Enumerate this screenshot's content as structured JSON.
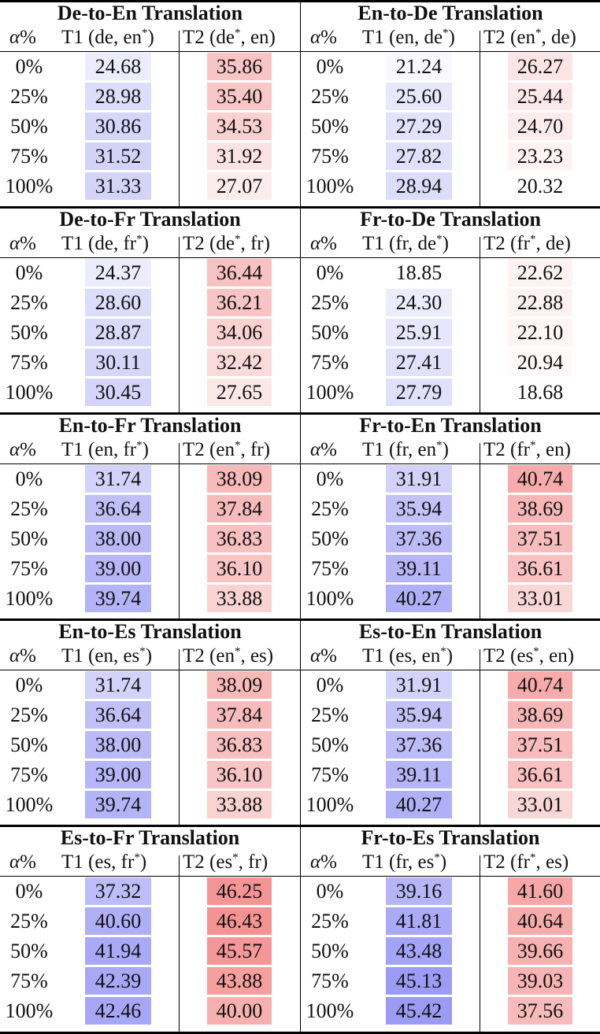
{
  "alpha_header": "α%",
  "alpha_values": [
    "0%",
    "25%",
    "50%",
    "75%",
    "100%"
  ],
  "blocks": [
    {
      "left": {
        "title": "De-to-En Translation",
        "t1_label": "T1 (de, en",
        "t1_star": "*",
        "t1_close": ")",
        "t2_label": "T2 (de",
        "t2_star": "*",
        "t2_close": ", en)",
        "t1": [
          "24.68",
          "28.98",
          "30.86",
          "31.52",
          "31.33"
        ],
        "t2": [
          "35.86",
          "35.40",
          "34.53",
          "31.92",
          "27.07"
        ],
        "t1_colors": [
          "#ececfc",
          "#dcdcfb",
          "#d6d6fb",
          "#d3d3fa",
          "#d4d4fa"
        ],
        "t2_colors": [
          "#f9c4c4",
          "#f9c7c7",
          "#fad0d0",
          "#fce3e3",
          "#fdecec"
        ]
      },
      "right": {
        "title": "En-to-De Translation",
        "t1_label": "T1 (en, de",
        "t1_star": "*",
        "t1_close": ")",
        "t2_label": "T2 (en",
        "t2_star": "*",
        "t2_close": ", de)",
        "t1": [
          "21.24",
          "25.60",
          "27.29",
          "27.82",
          "28.94"
        ],
        "t2": [
          "26.27",
          "25.44",
          "24.70",
          "23.23",
          "20.32"
        ],
        "t1_colors": [
          "#f8f8fe",
          "#e8e8fc",
          "#e2e2fc",
          "#e0e0fc",
          "#dcdcfb"
        ],
        "t2_colors": [
          "#fde5e5",
          "#fde9e9",
          "#fdecec",
          "#fef2f2",
          "#ffffff"
        ]
      }
    },
    {
      "left": {
        "title": "De-to-Fr Translation",
        "t1_label": "T1 (de, fr",
        "t1_star": "*",
        "t1_close": ")",
        "t2_label": "T2 (de",
        "t2_star": "*",
        "t2_close": ", fr)",
        "t1": [
          "24.37",
          "28.60",
          "28.87",
          "30.11",
          "30.45"
        ],
        "t2": [
          "36.44",
          "36.21",
          "34.06",
          "32.42",
          "27.65"
        ],
        "t1_colors": [
          "#ececfc",
          "#dcdcfb",
          "#dadafb",
          "#d6d6fb",
          "#d5d5fb"
        ],
        "t2_colors": [
          "#f9c2c2",
          "#f9c4c4",
          "#fad2d2",
          "#fbdada",
          "#fde8e8"
        ]
      },
      "right": {
        "title": "Fr-to-De Translation",
        "t1_label": "T1 (fr, de",
        "t1_star": "*",
        "t1_close": ")",
        "t2_label": "T2 (fr",
        "t2_star": "*",
        "t2_close": ", de)",
        "t1": [
          "18.85",
          "24.30",
          "25.91",
          "27.41",
          "27.79"
        ],
        "t2": [
          "22.62",
          "22.88",
          "22.10",
          "20.94",
          "18.68"
        ],
        "t1_colors": [
          "#ffffff",
          "#ececfc",
          "#e6e6fc",
          "#e1e1fc",
          "#e0e0fc"
        ],
        "t2_colors": [
          "#fef3f3",
          "#fef2f2",
          "#fef5f5",
          "#fffafa",
          "#ffffff"
        ]
      }
    },
    {
      "left": {
        "title": "En-to-Fr Translation",
        "t1_label": "T1 (en, fr",
        "t1_star": "*",
        "t1_close": ")",
        "t2_label": "T2 (en",
        "t2_star": "*",
        "t2_close": ", fr)",
        "t1": [
          "31.74",
          "36.64",
          "38.00",
          "39.00",
          "39.74"
        ],
        "t2": [
          "38.09",
          "37.84",
          "36.83",
          "36.10",
          "33.88"
        ],
        "t1_colors": [
          "#d2d2fa",
          "#c0c0f9",
          "#babaf9",
          "#b6b6f8",
          "#b3b3f8"
        ],
        "t2_colors": [
          "#f8b9b9",
          "#f8bbbb",
          "#f9c0c0",
          "#f9c4c4",
          "#fad2d2"
        ]
      },
      "right": {
        "title": "Fr-to-En Translation",
        "t1_label": "T1 (fr, en",
        "t1_star": "*",
        "t1_close": ")",
        "t2_label": "T2 (fr",
        "t2_star": "*",
        "t2_close": ", en)",
        "t1": [
          "31.91",
          "35.94",
          "37.36",
          "39.11",
          "40.27"
        ],
        "t2": [
          "40.74",
          "38.69",
          "37.51",
          "36.61",
          "33.01"
        ],
        "t1_colors": [
          "#d2d2fa",
          "#c2c2f9",
          "#bcbcf9",
          "#b5b5f8",
          "#b0b0f8"
        ],
        "t2_colors": [
          "#f7abab",
          "#f8b6b6",
          "#f8bcbc",
          "#f9c1c1",
          "#fad7d7"
        ]
      }
    },
    {
      "left": {
        "title": "En-to-Es Translation",
        "t1_label": "T1 (en, es",
        "t1_star": "*",
        "t1_close": ")",
        "t2_label": "T2 (en",
        "t2_star": "*",
        "t2_close": ", es)",
        "t1": [
          "31.74",
          "36.64",
          "38.00",
          "39.00",
          "39.74"
        ],
        "t2": [
          "38.09",
          "37.84",
          "36.83",
          "36.10",
          "33.88"
        ],
        "t1_colors": [
          "#d2d2fa",
          "#c0c0f9",
          "#babaf9",
          "#b6b6f8",
          "#b3b3f8"
        ],
        "t2_colors": [
          "#f8b9b9",
          "#f8bbbb",
          "#f9c0c0",
          "#f9c4c4",
          "#fad2d2"
        ]
      },
      "right": {
        "title": "Es-to-En Translation",
        "t1_label": "T1 (es, en",
        "t1_star": "*",
        "t1_close": ")",
        "t2_label": "T2 (es",
        "t2_star": "*",
        "t2_close": ", en)",
        "t1": [
          "31.91",
          "35.94",
          "37.36",
          "39.11",
          "40.27"
        ],
        "t2": [
          "40.74",
          "38.69",
          "37.51",
          "36.61",
          "33.01"
        ],
        "t1_colors": [
          "#d2d2fa",
          "#c2c2f9",
          "#bcbcf9",
          "#b5b5f8",
          "#b0b0f8"
        ],
        "t2_colors": [
          "#f7abab",
          "#f8b6b6",
          "#f8bcbc",
          "#f9c1c1",
          "#fad7d7"
        ]
      }
    },
    {
      "left": {
        "title": "Es-to-Fr Translation",
        "t1_label": "T1 (es, fr",
        "t1_star": "*",
        "t1_close": ")",
        "t2_label": "T2 (es",
        "t2_star": "*",
        "t2_close": ", fr)",
        "t1": [
          "37.32",
          "40.60",
          "41.94",
          "42.39",
          "42.46"
        ],
        "t2": [
          "46.25",
          "46.43",
          "45.57",
          "43.88",
          "40.00"
        ],
        "t1_colors": [
          "#bdbdf9",
          "#afaff8",
          "#a9a9f7",
          "#a8a8f7",
          "#a7a7f7"
        ],
        "t2_colors": [
          "#f59494",
          "#f59393",
          "#f59797",
          "#f69f9f",
          "#f7afaf"
        ]
      },
      "right": {
        "title": "Fr-to-Es Translation",
        "t1_label": "T1 (fr, es",
        "t1_star": "*",
        "t1_close": ")",
        "t2_label": "T2 (fr",
        "t2_star": "*",
        "t2_close": ", es)",
        "t1": [
          "39.16",
          "41.81",
          "43.48",
          "45.13",
          "45.42"
        ],
        "t2": [
          "41.60",
          "40.64",
          "39.66",
          "39.03",
          "37.56"
        ],
        "t1_colors": [
          "#b5b5f8",
          "#aaaaf7",
          "#a3a3f7",
          "#9c9cf6",
          "#9b9bf6"
        ],
        "t2_colors": [
          "#f7a7a7",
          "#f7acac",
          "#f8b1b1",
          "#f8b4b4",
          "#f8bbbb"
        ]
      }
    }
  ],
  "chart_data": {
    "type": "table",
    "title": "BLEU scores by α% for T1 and T2 across translation directions",
    "columns": [
      "α%",
      "T1",
      "T2"
    ],
    "rows_alpha": [
      "0%",
      "25%",
      "50%",
      "75%",
      "100%"
    ],
    "tables": [
      {
        "name": "De-to-En Translation",
        "T1_label": "T1 (de, en*)",
        "T2_label": "T2 (de*, en)",
        "T1": [
          24.68,
          28.98,
          30.86,
          31.52,
          31.33
        ],
        "T2": [
          35.86,
          35.4,
          34.53,
          31.92,
          27.07
        ]
      },
      {
        "name": "En-to-De Translation",
        "T1_label": "T1 (en, de*)",
        "T2_label": "T2 (en*, de)",
        "T1": [
          21.24,
          25.6,
          27.29,
          27.82,
          28.94
        ],
        "T2": [
          26.27,
          25.44,
          24.7,
          23.23,
          20.32
        ]
      },
      {
        "name": "De-to-Fr Translation",
        "T1_label": "T1 (de, fr*)",
        "T2_label": "T2 (de*, fr)",
        "T1": [
          24.37,
          28.6,
          28.87,
          30.11,
          30.45
        ],
        "T2": [
          36.44,
          36.21,
          34.06,
          32.42,
          27.65
        ]
      },
      {
        "name": "Fr-to-De Translation",
        "T1_label": "T1 (fr, de*)",
        "T2_label": "T2 (fr*, de)",
        "T1": [
          18.85,
          24.3,
          25.91,
          27.41,
          27.79
        ],
        "T2": [
          22.62,
          22.88,
          22.1,
          20.94,
          18.68
        ]
      },
      {
        "name": "En-to-Fr Translation",
        "T1_label": "T1 (en, fr*)",
        "T2_label": "T2 (en*, fr)",
        "T1": [
          31.74,
          36.64,
          38.0,
          39.0,
          39.74
        ],
        "T2": [
          38.09,
          37.84,
          36.83,
          36.1,
          33.88
        ]
      },
      {
        "name": "Fr-to-En Translation",
        "T1_label": "T1 (fr, en*)",
        "T2_label": "T2 (fr*, en)",
        "T1": [
          31.91,
          35.94,
          37.36,
          39.11,
          40.27
        ],
        "T2": [
          40.74,
          38.69,
          37.51,
          36.61,
          33.01
        ]
      },
      {
        "name": "En-to-Es Translation",
        "T1_label": "T1 (en, es*)",
        "T2_label": "T2 (en*, es)",
        "T1": [
          31.74,
          36.64,
          38.0,
          39.0,
          39.74
        ],
        "T2": [
          38.09,
          37.84,
          36.83,
          36.1,
          33.88
        ]
      },
      {
        "name": "Es-to-En Translation",
        "T1_label": "T1 (es, en*)",
        "T2_label": "T2 (es*, en)",
        "T1": [
          31.91,
          35.94,
          37.36,
          39.11,
          40.27
        ],
        "T2": [
          40.74,
          38.69,
          37.51,
          36.61,
          33.01
        ]
      },
      {
        "name": "Es-to-Fr Translation",
        "T1_label": "T1 (es, fr*)",
        "T2_label": "T2 (es*, fr)",
        "T1": [
          37.32,
          40.6,
          41.94,
          42.39,
          42.46
        ],
        "T2": [
          46.25,
          46.43,
          45.57,
          43.88,
          40.0
        ]
      },
      {
        "name": "Fr-to-Es Translation",
        "T1_label": "T1 (fr, es*)",
        "T2_label": "T2 (fr*, es)",
        "T1": [
          39.16,
          41.81,
          43.48,
          45.13,
          45.42
        ],
        "T2": [
          41.6,
          40.64,
          39.66,
          39.03,
          37.56
        ]
      }
    ],
    "color_scale": {
      "T1": "blue (higher = more saturated)",
      "T2": "red (higher = more saturated)"
    }
  }
}
